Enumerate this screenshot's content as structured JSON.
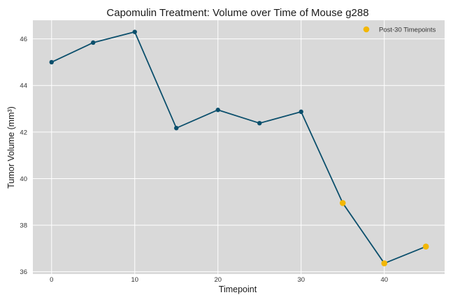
{
  "chart_data": {
    "type": "line",
    "title": "Capomulin Treatment: Volume over Time of Mouse g288",
    "xlabel": "Timepoint",
    "ylabel": "Tumor Volume (mm³)",
    "xlim": [
      -2.25,
      47.25
    ],
    "ylim": [
      35.9,
      46.8
    ],
    "xticks": [
      0,
      10,
      20,
      30,
      40
    ],
    "yticks": [
      36,
      38,
      40,
      42,
      44,
      46
    ],
    "grid": true,
    "legend_position": "top-right",
    "series": [
      {
        "type": "line",
        "color": "#0b4f6c",
        "x": [
          0,
          5,
          10,
          15,
          20,
          25,
          30,
          35,
          40,
          45
        ],
        "y": [
          45.0,
          45.84,
          46.3,
          42.17,
          42.95,
          42.38,
          42.87,
          38.95,
          36.36,
          37.08
        ]
      },
      {
        "type": "scatter",
        "name": "Post-30 Timepoints",
        "color": "#f2b705",
        "x": [
          35,
          40,
          45
        ],
        "y": [
          38.95,
          36.36,
          37.08
        ]
      }
    ]
  }
}
